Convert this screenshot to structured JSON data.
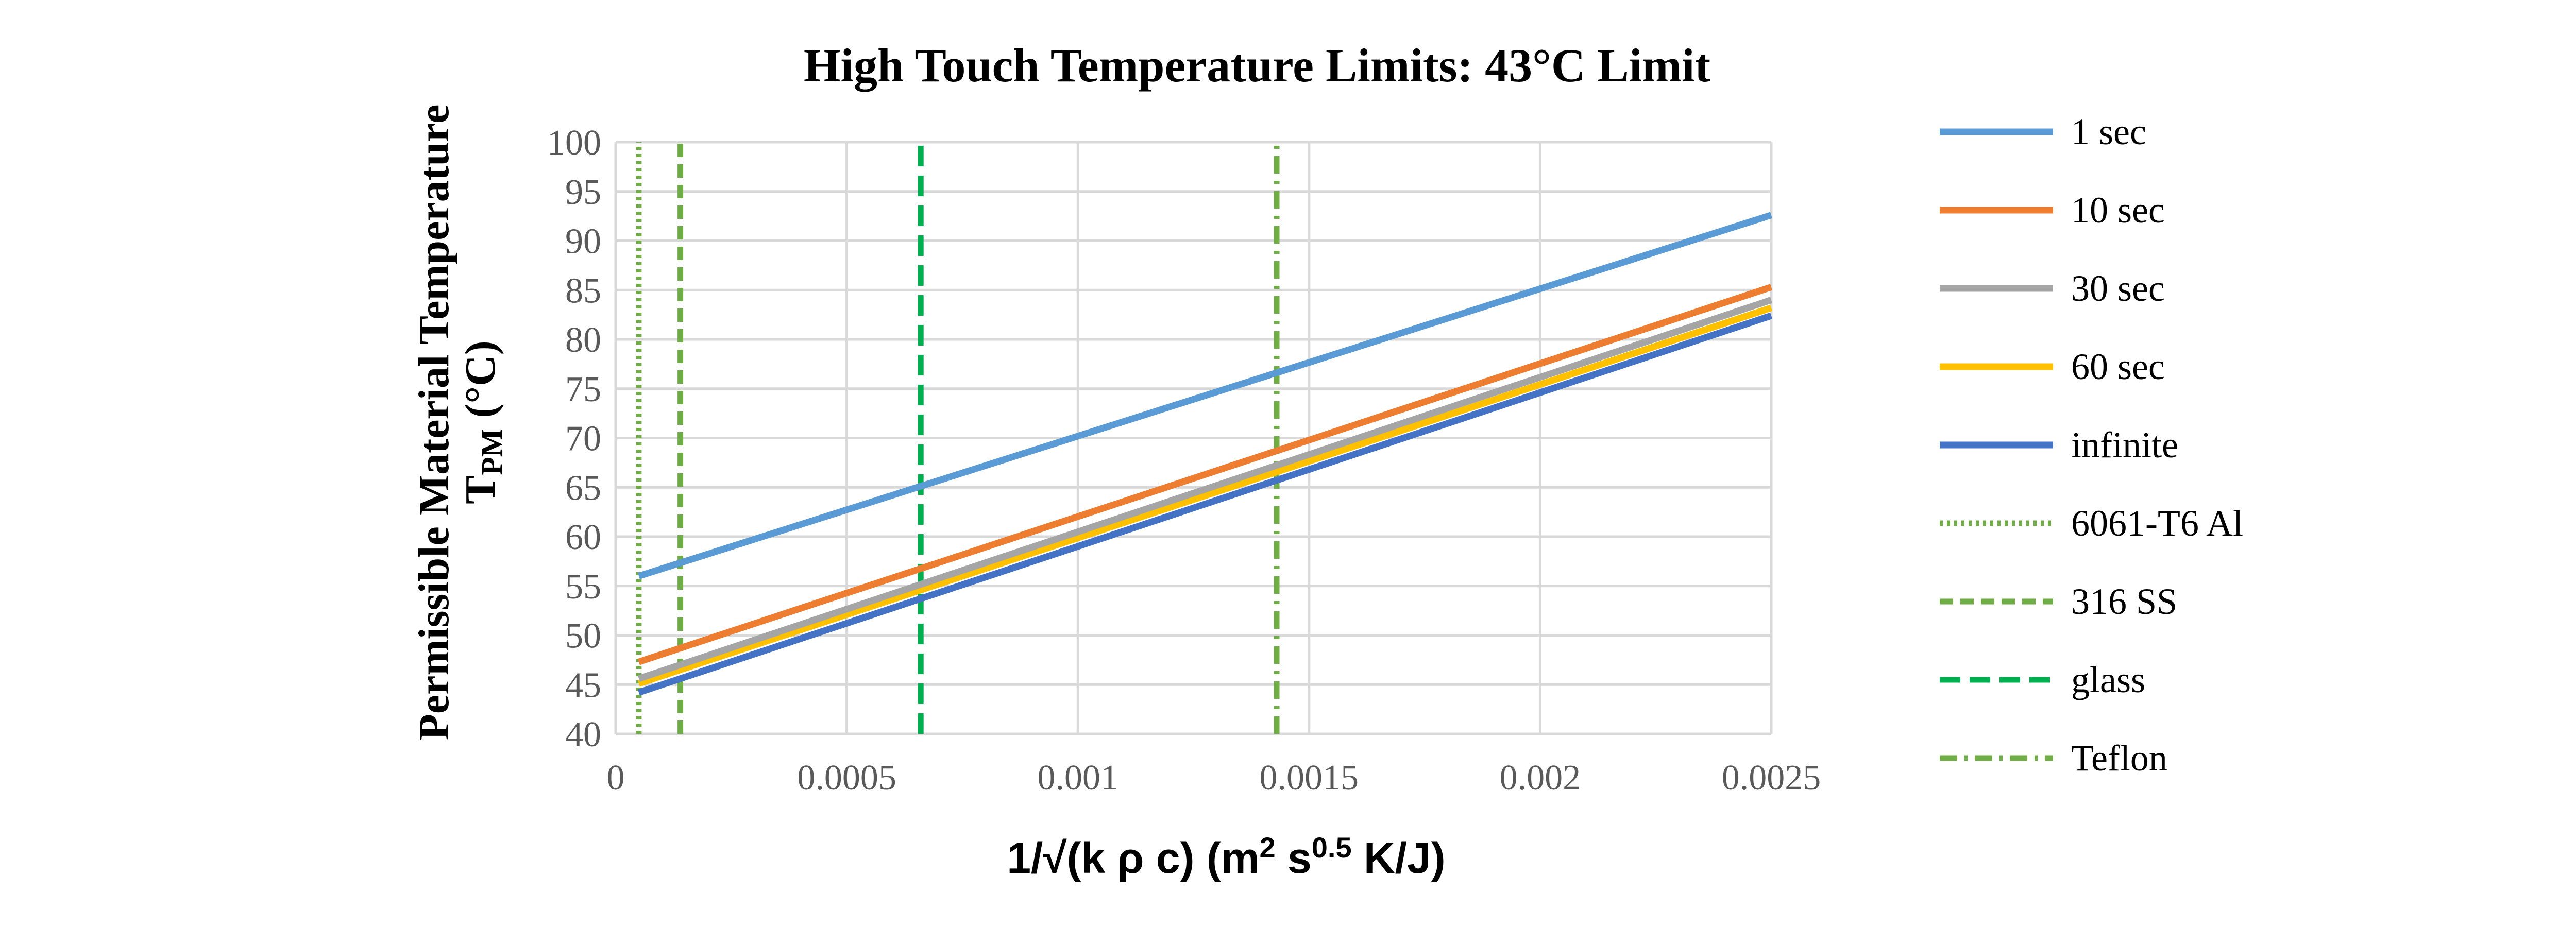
{
  "chart_data": {
    "type": "line",
    "title": "High Touch Temperature Limits: 43°C Limit",
    "ylabel_line1": "Permissible Material Temperature",
    "ylabel_line2_main": "T",
    "ylabel_line2_sub": "PM",
    "ylabel_line2_rest": " (°C)",
    "xlabel_part1": "1/√(k ρ c) (m",
    "xlabel_sup1": "2",
    "xlabel_part2": " s",
    "xlabel_sup2": "0.5",
    "xlabel_part3": " K/J)",
    "xlim": [
      0,
      0.0025
    ],
    "ylim": [
      40,
      100
    ],
    "xticks": [
      0,
      0.0005,
      0.001,
      0.0015,
      0.002,
      0.0025
    ],
    "xtick_labels": [
      "0",
      "0.0005",
      "0.001",
      "0.0015",
      "0.002",
      "0.0025"
    ],
    "yticks": [
      40,
      45,
      50,
      55,
      60,
      65,
      70,
      75,
      80,
      85,
      90,
      95,
      100
    ],
    "ytick_labels": [
      "40",
      "45",
      "50",
      "55",
      "60",
      "65",
      "70",
      "75",
      "80",
      "85",
      "90",
      "95",
      "100"
    ],
    "grid": true,
    "legend_position": "right",
    "series": [
      {
        "name": "1 sec",
        "color": "#5B9BD5",
        "dash": "solid",
        "x": [
          5e-05,
          0.0025
        ],
        "y": [
          56.0,
          92.6
        ]
      },
      {
        "name": "10 sec",
        "color": "#ED7D31",
        "dash": "solid",
        "x": [
          5e-05,
          0.0025
        ],
        "y": [
          47.3,
          85.3
        ]
      },
      {
        "name": "30 sec",
        "color": "#A5A5A5",
        "dash": "solid",
        "x": [
          5e-05,
          0.0025
        ],
        "y": [
          45.6,
          84.0
        ]
      },
      {
        "name": "60 sec",
        "color": "#FFC000",
        "dash": "solid",
        "x": [
          5e-05,
          0.0025
        ],
        "y": [
          45.1,
          83.2
        ]
      },
      {
        "name": "infinite",
        "color": "#4472C4",
        "dash": "solid",
        "x": [
          5e-05,
          0.0025
        ],
        "y": [
          44.2,
          82.4
        ]
      },
      {
        "name": "6061-T6 Al",
        "color": "#70AD47",
        "dash": "dotted",
        "x": [
          5e-05,
          5e-05
        ],
        "y": [
          40,
          100
        ]
      },
      {
        "name": "316 SS",
        "color": "#70AD47",
        "dash": "dashed",
        "x": [
          0.00014,
          0.00014
        ],
        "y": [
          40,
          100
        ]
      },
      {
        "name": "glass",
        "color": "#00B050",
        "dash": "longdash",
        "x": [
          0.00066,
          0.00066
        ],
        "y": [
          40,
          100
        ]
      },
      {
        "name": "Teflon",
        "color": "#70AD47",
        "dash": "dashdot",
        "x": [
          0.00143,
          0.00143
        ],
        "y": [
          40,
          100
        ]
      }
    ]
  }
}
